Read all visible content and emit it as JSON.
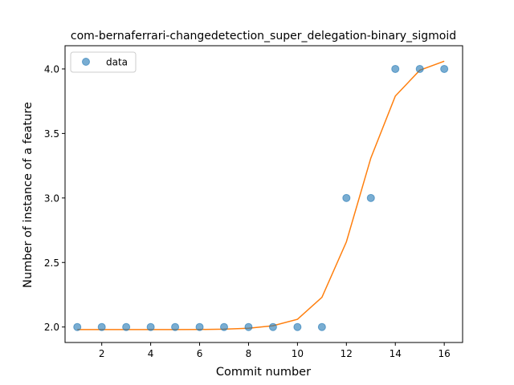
{
  "chart_data": {
    "type": "scatter",
    "title": "com-bernaferrari-changedetection_super_delegation-binary_sigmoid",
    "xlabel": "Commit number",
    "ylabel": "Number of instance of a feature",
    "xlim": [
      0.5,
      16.75
    ],
    "ylim": [
      1.88,
      4.18
    ],
    "xticks": [
      2,
      4,
      6,
      8,
      10,
      12,
      14,
      16
    ],
    "xtick_labels": [
      "2",
      "4",
      "6",
      "8",
      "10",
      "12",
      "14",
      "16"
    ],
    "yticks": [
      2.0,
      2.5,
      3.0,
      3.5,
      4.0
    ],
    "ytick_labels": [
      "2.0",
      "2.5",
      "3.0",
      "3.5",
      "4.0"
    ],
    "grid": false,
    "legend_position": "top-left",
    "series": [
      {
        "name": "data",
        "kind": "scatter",
        "color": "#1f77b4",
        "x": [
          1,
          2,
          3,
          4,
          5,
          6,
          7,
          8,
          9,
          10,
          11,
          12,
          13,
          14,
          15,
          16
        ],
        "y": [
          2,
          2,
          2,
          2,
          2,
          2,
          2,
          2,
          2,
          2,
          2,
          3,
          3,
          4,
          4,
          4
        ]
      },
      {
        "kind": "line",
        "color": "#ff7f0e",
        "x": [
          1,
          2,
          3,
          4,
          5,
          6,
          7,
          8,
          9,
          10,
          11,
          12,
          13,
          14,
          15,
          16
        ],
        "y": [
          1.98,
          1.98,
          1.98,
          1.98,
          1.98,
          1.981,
          1.983,
          1.99,
          2.01,
          2.06,
          2.23,
          2.66,
          3.31,
          3.79,
          3.99,
          4.06
        ]
      }
    ]
  }
}
